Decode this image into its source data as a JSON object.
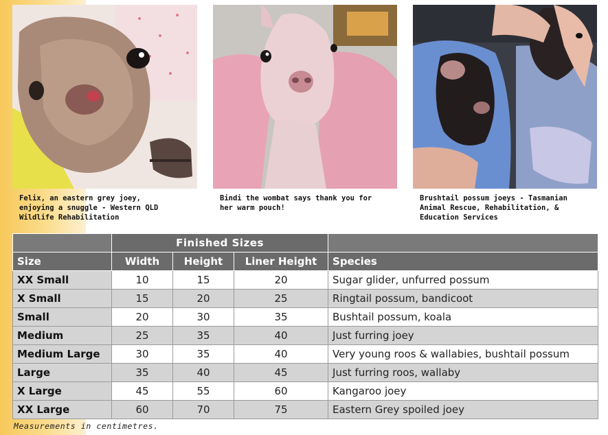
{
  "photos": [
    {
      "caption": "Felix, an eastern grey joey,\nenjoying a snuggle - Western QLD\nWildlife Rehabilitation"
    },
    {
      "caption": "Bindi the wombat says thank you for\nher warm pouch!"
    },
    {
      "caption": "Brushtail possum joeys - Tasmanian\nAnimal Rescue, Rehabilitation, &\nEducation Services"
    }
  ],
  "table": {
    "group_header": "Finished Sizes",
    "columns": {
      "size": "Size",
      "width": "Width",
      "height": "Height",
      "liner_height": "Liner Height",
      "species": "Species"
    },
    "rows": [
      {
        "size": "XX Small",
        "width": "10",
        "height": "15",
        "liner": "20",
        "species": "Sugar glider, unfurred possum"
      },
      {
        "size": "X Small",
        "width": "15",
        "height": "20",
        "liner": "25",
        "species": "Ringtail possum, bandicoot"
      },
      {
        "size": "Small",
        "width": "20",
        "height": "30",
        "liner": "35",
        "species": "Bushtail possum, koala"
      },
      {
        "size": "Medium",
        "width": "25",
        "height": "35",
        "liner": "40",
        "species": "Just furring joey"
      },
      {
        "size": "Medium Large",
        "width": "30",
        "height": "35",
        "liner": "40",
        "species": "Very young roos & wallabies, bushtail possum"
      },
      {
        "size": "Large",
        "width": "35",
        "height": "40",
        "liner": "45",
        "species": "Just furring roos, wallaby"
      },
      {
        "size": "X Large",
        "width": "45",
        "height": "55",
        "liner": "60",
        "species": "Kangaroo joey"
      },
      {
        "size": "XX Large",
        "width": "60",
        "height": "70",
        "liner": "75",
        "species": "Eastern Grey spoiled joey"
      }
    ]
  },
  "footnote": "Measurements in centimetres."
}
